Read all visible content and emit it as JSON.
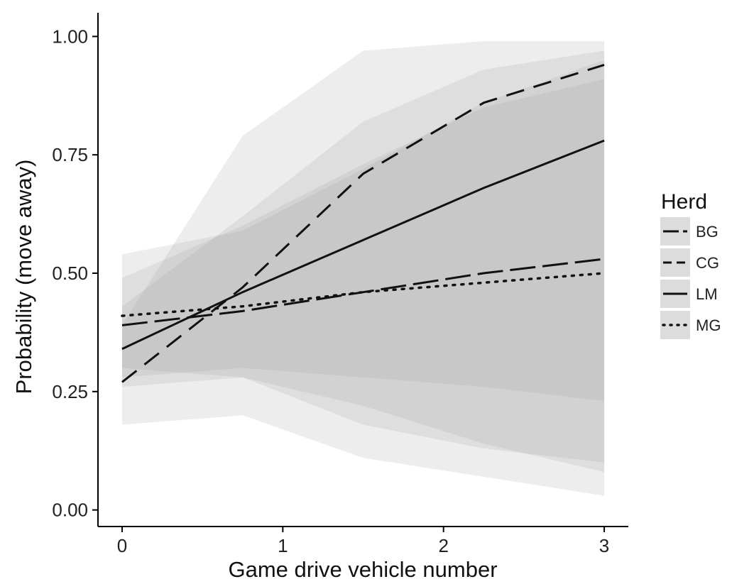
{
  "chart_data": {
    "type": "line",
    "title": "",
    "xlabel": "Game drive vehicle number",
    "ylabel": "Probability (move away)",
    "xlim": [
      -0.15,
      3.15
    ],
    "ylim": [
      -0.035,
      1.05
    ],
    "x_ticks": [
      0,
      1,
      2,
      3
    ],
    "x_tick_labels": [
      "0",
      "1",
      "2",
      "3"
    ],
    "y_ticks": [
      0,
      0.25,
      0.5,
      0.75,
      1.0
    ],
    "y_tick_labels": [
      "0.00",
      "0.25",
      "0.50",
      "0.75",
      "1.00"
    ],
    "grid": false,
    "legend": {
      "title": "Herd",
      "placement": "right",
      "entries": [
        "BG",
        "CG",
        "LM",
        "MG"
      ]
    },
    "series": [
      {
        "name": "BG",
        "line_style": "longdash",
        "x": [
          0,
          0.75,
          1.5,
          2.25,
          3
        ],
        "y": [
          0.39,
          0.42,
          0.46,
          0.5,
          0.53
        ],
        "ci_lower": [
          0.28,
          0.3,
          0.28,
          0.26,
          0.23
        ],
        "ci_upper": [
          0.49,
          0.6,
          0.73,
          0.85,
          0.91
        ]
      },
      {
        "name": "CG",
        "line_style": "dashed",
        "x": [
          0,
          0.75,
          1.5,
          2.25,
          3
        ],
        "y": [
          0.27,
          0.47,
          0.71,
          0.86,
          0.94
        ],
        "ci_lower": [
          0.18,
          0.2,
          0.11,
          0.07,
          0.03
        ],
        "ci_upper": [
          0.39,
          0.79,
          0.97,
          0.99,
          0.99
        ]
      },
      {
        "name": "LM",
        "line_style": "solid",
        "x": [
          0,
          0.75,
          1.5,
          2.25,
          3
        ],
        "y": [
          0.34,
          0.46,
          0.57,
          0.68,
          0.78
        ],
        "ci_lower": [
          0.26,
          0.28,
          0.18,
          0.13,
          0.1
        ],
        "ci_upper": [
          0.43,
          0.62,
          0.82,
          0.93,
          0.97
        ]
      },
      {
        "name": "MG",
        "line_style": "dotted",
        "x": [
          0,
          0.75,
          1.5,
          2.25,
          3
        ],
        "y": [
          0.41,
          0.43,
          0.46,
          0.48,
          0.5
        ],
        "ci_lower": [
          0.3,
          0.28,
          0.22,
          0.14,
          0.08
        ],
        "ci_upper": [
          0.54,
          0.59,
          0.72,
          0.86,
          0.95
        ]
      }
    ],
    "colors": {
      "line": "#111111",
      "ribbon": "#999999",
      "legend_key_bg": "#dcdcdc",
      "axis": "#000000"
    }
  }
}
